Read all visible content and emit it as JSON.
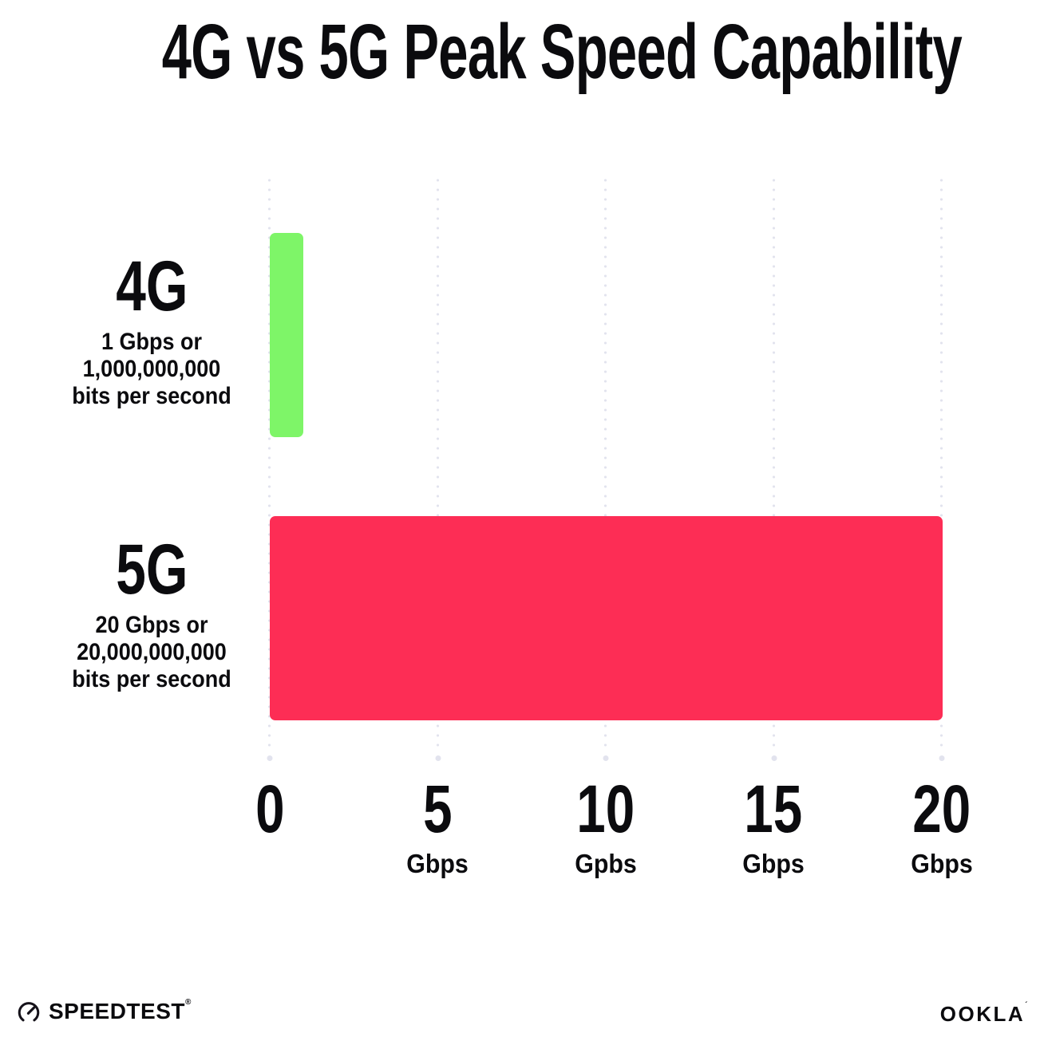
{
  "title": "4G vs 5G Peak Speed Capability",
  "colors": {
    "bar_4g_green": "#7EF568",
    "bar_5g_pink": "#FD2D55",
    "gridline": "#E2E3EE",
    "ink": "#0B0B0E",
    "background": "#FFFFFF"
  },
  "chart_data": {
    "type": "bar",
    "orientation": "horizontal",
    "title": "4G vs 5G Peak Speed Capability",
    "categories": [
      "4G",
      "5G"
    ],
    "values": [
      1,
      20
    ],
    "xlabel": "",
    "ylabel": "",
    "xlim": [
      0,
      20
    ],
    "grid": "vertical-dotted",
    "legend": "none",
    "rows": [
      {
        "label": "4G",
        "value_gbps": 1,
        "color": "#7EF568",
        "desc_lines": [
          "1 Gbps or",
          "1,000,000,000",
          "bits per second"
        ]
      },
      {
        "label": "5G",
        "value_gbps": 20,
        "color": "#FD2D55",
        "desc_lines": [
          "20 Gbps or",
          "20,000,000,000",
          "bits per second"
        ]
      }
    ],
    "x_ticks": [
      {
        "label": "0",
        "unit": ""
      },
      {
        "label": "5",
        "unit": "Gbps"
      },
      {
        "label": "10",
        "unit": "Gpbs"
      },
      {
        "label": "15",
        "unit": "Gbps"
      },
      {
        "label": "20",
        "unit": "Gbps"
      }
    ]
  },
  "footer": {
    "speedtest_label": "SPEEDTEST",
    "speedtest_mark": "®",
    "ookla_label": "OOKLA",
    "ookla_mark": "´"
  }
}
